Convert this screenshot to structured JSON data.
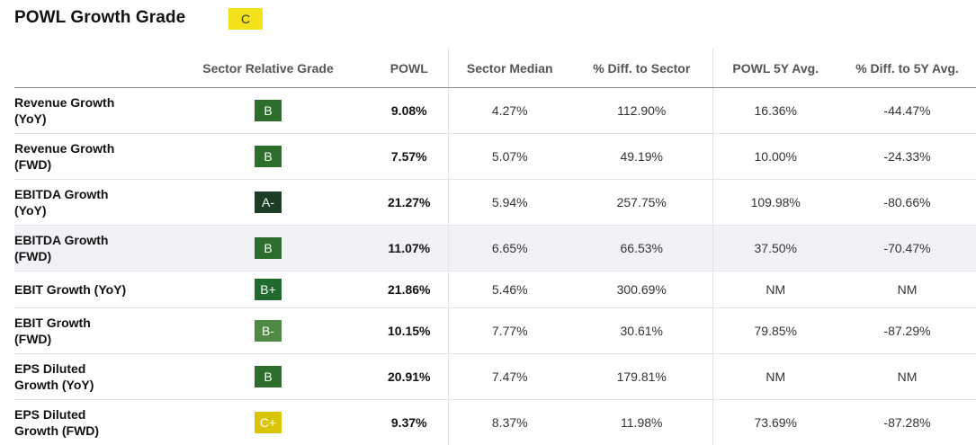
{
  "header": {
    "title": "POWL Growth Grade",
    "overall_grade": "C",
    "overall_grade_color": "#f2e11b"
  },
  "columns": [
    "",
    "Sector Relative Grade",
    "POWL",
    "Sector Median",
    "% Diff. to Sector",
    "POWL 5Y Avg.",
    "% Diff. to 5Y Avg."
  ],
  "rows": [
    {
      "metric_line1": "Revenue Growth",
      "metric_line2": "(YoY)",
      "grade": "B",
      "grade_color": "#2e6e2d",
      "powl": "9.08%",
      "sector_median": "4.27%",
      "diff_sector": "112.90%",
      "avg_5y": "16.36%",
      "diff_5y": "-44.47%"
    },
    {
      "metric_line1": "Revenue Growth",
      "metric_line2": "(FWD)",
      "grade": "B",
      "grade_color": "#2e6e2d",
      "powl": "7.57%",
      "sector_median": "5.07%",
      "diff_sector": "49.19%",
      "avg_5y": "10.00%",
      "diff_5y": "-24.33%"
    },
    {
      "metric_line1": "EBITDA Growth",
      "metric_line2": "(YoY)",
      "grade": "A-",
      "grade_color": "#1d3d25",
      "powl": "21.27%",
      "sector_median": "5.94%",
      "diff_sector": "257.75%",
      "avg_5y": "109.98%",
      "diff_5y": "-80.66%"
    },
    {
      "metric_line1": "EBITDA Growth",
      "metric_line2": "(FWD)",
      "grade": "B",
      "grade_color": "#2e6e2d",
      "powl": "11.07%",
      "sector_median": "6.65%",
      "diff_sector": "66.53%",
      "avg_5y": "37.50%",
      "diff_5y": "-70.47%"
    },
    {
      "metric_line1": "EBIT Growth (YoY)",
      "metric_line2": "",
      "grade": "B+",
      "grade_color": "#1f6a2c",
      "powl": "21.86%",
      "sector_median": "5.46%",
      "diff_sector": "300.69%",
      "avg_5y": "NM",
      "diff_5y": "NM"
    },
    {
      "metric_line1": "EBIT Growth",
      "metric_line2": "(FWD)",
      "grade": "B-",
      "grade_color": "#4f8a45",
      "powl": "10.15%",
      "sector_median": "7.77%",
      "diff_sector": "30.61%",
      "avg_5y": "79.85%",
      "diff_5y": "-87.29%"
    },
    {
      "metric_line1": "EPS Diluted",
      "metric_line2": "Growth (YoY)",
      "grade": "B",
      "grade_color": "#2e6e2d",
      "powl": "20.91%",
      "sector_median": "7.47%",
      "diff_sector": "179.81%",
      "avg_5y": "NM",
      "diff_5y": "NM"
    },
    {
      "metric_line1": "EPS Diluted",
      "metric_line2": "Growth (FWD)",
      "grade": "C+",
      "grade_color": "#d9c406",
      "powl": "9.37%",
      "sector_median": "8.37%",
      "diff_sector": "11.98%",
      "avg_5y": "73.69%",
      "diff_5y": "-87.28%"
    }
  ]
}
